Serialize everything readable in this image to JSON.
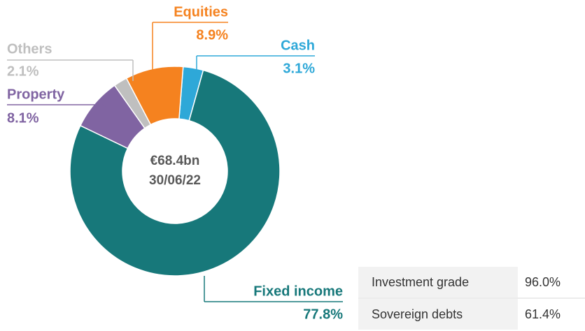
{
  "chart_data": {
    "type": "donut",
    "center_label": "€68.4bn",
    "center_sublabel": "30/06/22",
    "categories": [
      "Cash",
      "Fixed income",
      "Property",
      "Others",
      "Equities"
    ],
    "values": [
      3.1,
      77.8,
      8.1,
      2.1,
      8.9
    ],
    "value_labels": [
      "3.1%",
      "77.8%",
      "8.1%",
      "2.1%",
      "8.9%"
    ],
    "colors": [
      "#2ea8d8",
      "#17787a",
      "#8064a2",
      "#bfbfbf",
      "#f5821f"
    ]
  },
  "table": {
    "rows": [
      [
        "Investment grade",
        "96.0%"
      ],
      [
        "Sovereign debts",
        "61.4%"
      ]
    ]
  }
}
